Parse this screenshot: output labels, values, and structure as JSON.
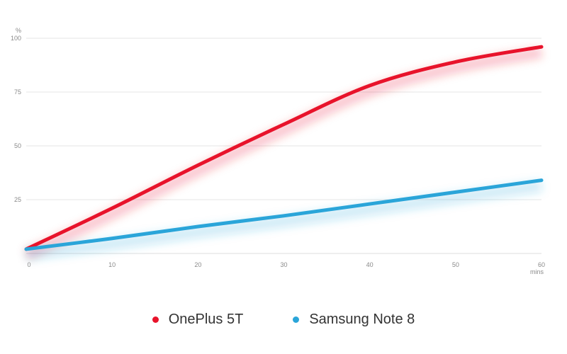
{
  "chart_data": {
    "type": "line",
    "title": "",
    "xlabel": "mins",
    "ylabel": "%",
    "xlim": [
      0,
      60
    ],
    "ylim": [
      0,
      100
    ],
    "x_ticks": [
      "0",
      "10",
      "20",
      "30",
      "40",
      "50",
      "60"
    ],
    "y_ticks": [
      "25",
      "50",
      "75",
      "100"
    ],
    "grid": true,
    "legend_position": "bottom-center",
    "series": [
      {
        "name": "OnePlus 5T",
        "color": "#e8132b",
        "x": [
          0,
          10,
          20,
          30,
          40,
          50,
          60
        ],
        "y": [
          2,
          21,
          41,
          60,
          78,
          89,
          96
        ]
      },
      {
        "name": "Samsung Note 8",
        "color": "#2aa5d9",
        "x": [
          0,
          10,
          20,
          30,
          40,
          50,
          60
        ],
        "y": [
          2,
          7,
          12.5,
          17.5,
          23,
          28.5,
          34
        ]
      }
    ]
  }
}
